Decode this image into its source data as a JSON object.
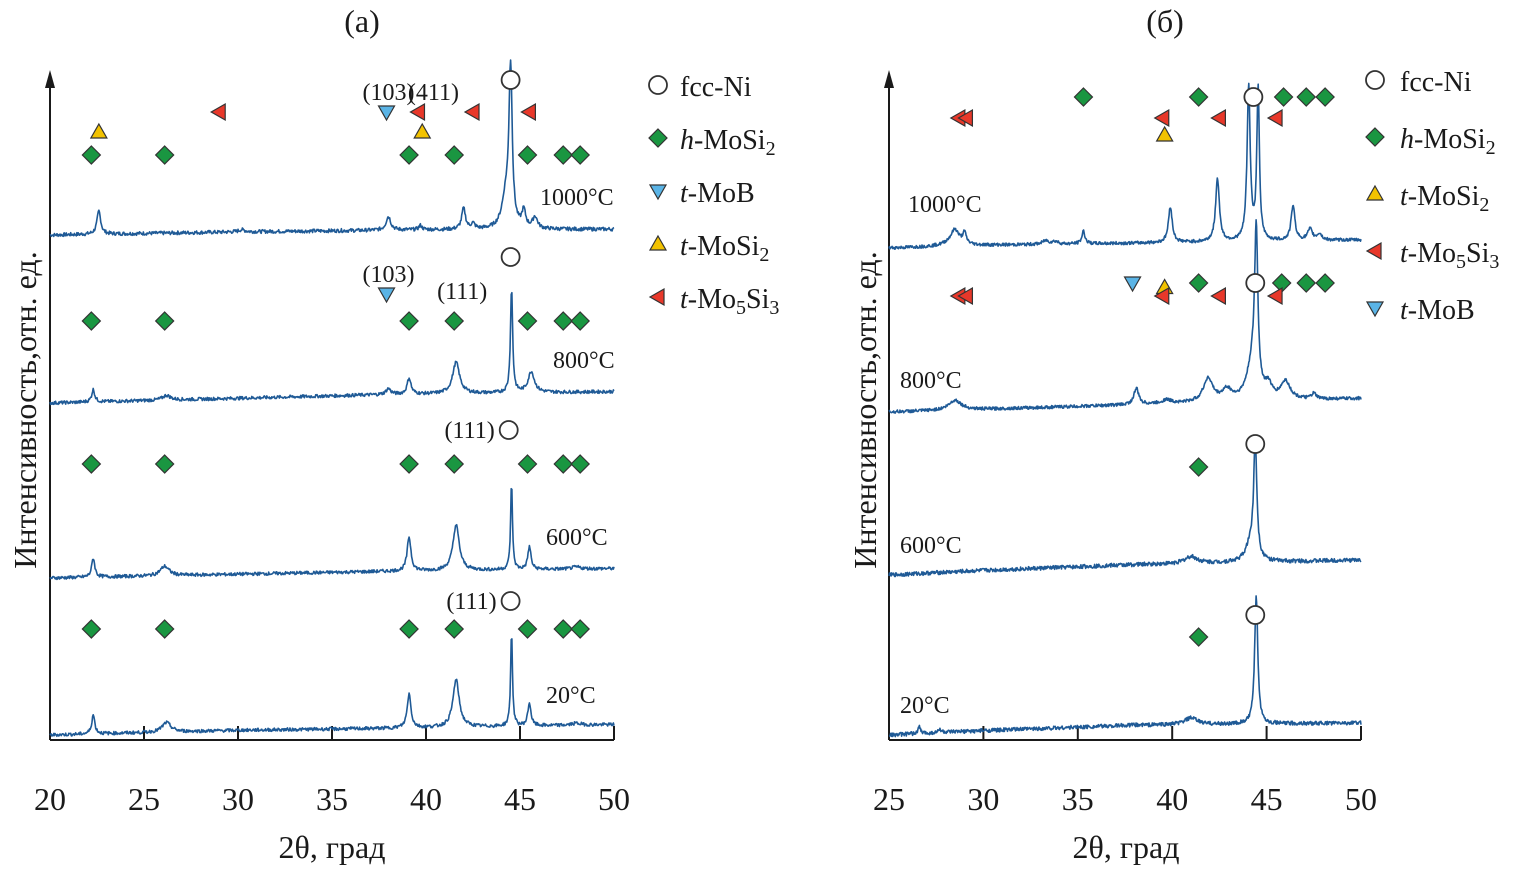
{
  "chart_data": [
    {
      "type": "line",
      "panel_label": "(a)",
      "xlabel": "2θ, град",
      "ylabel": "Интенсивность,отн. ед.",
      "xlim": [
        20,
        50
      ],
      "x_ticks": [
        20,
        25,
        30,
        35,
        40,
        45,
        50
      ],
      "y_ticks": [],
      "grid": false,
      "legend_position": "right",
      "legend": [
        {
          "phase": "fcc-Ni",
          "prefix": "",
          "name": "fcc-Ni",
          "marker": "circle"
        },
        {
          "phase": "h-MoSi2",
          "prefix": "h",
          "name": "-MoSi",
          "sub": "2",
          "marker": "diamond"
        },
        {
          "phase": "t-MoB",
          "prefix": "t",
          "name": "-MoB",
          "marker": "triangle-down"
        },
        {
          "phase": "t-MoSi2",
          "prefix": "t",
          "name": "-MoSi",
          "sub": "2",
          "marker": "triangle-up"
        },
        {
          "phase": "t-Mo5Si3",
          "prefix": "t",
          "name": "-Mo",
          "sub": "5",
          "name2": "Si",
          "sub2": "3",
          "marker": "triangle-left"
        }
      ],
      "series": [
        {
          "name": "1000°C",
          "baseline": [
            [
              20,
              0.0
            ],
            [
              30,
              0.3
            ],
            [
              40,
              0.5
            ],
            [
              50,
              0.55
            ]
          ],
          "peaks": [
            [
              22.6,
              2.2,
              0.12
            ],
            [
              30.2,
              0.2,
              0.2
            ],
            [
              38.0,
              1.3,
              0.15
            ],
            [
              39.7,
              0.4,
              0.1
            ],
            [
              42.0,
              2.0,
              0.12
            ],
            [
              42.5,
              0.5,
              0.12
            ],
            [
              44.5,
              15.0,
              0.1
            ],
            [
              44.25,
              3.0,
              0.25
            ],
            [
              45.2,
              1.6,
              0.12
            ],
            [
              45.8,
              1.1,
              0.15
            ]
          ],
          "markers": [
            {
              "phase": "fcc-Ni",
              "x": 44.5,
              "row": 0,
              "label": ""
            },
            {
              "phase": "t-MoB",
              "x": 37.9,
              "row": 1,
              "label": "(103)"
            },
            {
              "phase": "t-Mo5Si3",
              "x": 29.0,
              "row": 1
            },
            {
              "phase": "t-Mo5Si3",
              "x": 39.6,
              "row": 1
            },
            {
              "phase": "t-Mo5Si3",
              "x": 42.5,
              "row": 1,
              "label": "(411)"
            },
            {
              "phase": "t-Mo5Si3",
              "x": 45.5,
              "row": 1
            },
            {
              "phase": "t-MoSi2",
              "x": 22.6,
              "row": 2
            },
            {
              "phase": "t-MoSi2",
              "x": 39.8,
              "row": 2
            },
            {
              "phase": "h-MoSi2",
              "x": 22.2,
              "row": 3
            },
            {
              "phase": "h-MoSi2",
              "x": 26.1,
              "row": 3
            },
            {
              "phase": "h-MoSi2",
              "x": 39.1,
              "row": 3
            },
            {
              "phase": "h-MoSi2",
              "x": 41.5,
              "row": 3
            },
            {
              "phase": "h-MoSi2",
              "x": 45.4,
              "row": 3
            },
            {
              "phase": "h-MoSi2",
              "x": 47.3,
              "row": 3
            },
            {
              "phase": "h-MoSi2",
              "x": 48.2,
              "row": 3
            }
          ]
        },
        {
          "name": "800°C",
          "baseline": [
            [
              20,
              0.0
            ],
            [
              30,
              0.5
            ],
            [
              38,
              0.9
            ],
            [
              50,
              1.2
            ]
          ],
          "peaks": [
            [
              22.3,
              1.3,
              0.1
            ],
            [
              26.2,
              0.5,
              0.25
            ],
            [
              38.0,
              0.6,
              0.15
            ],
            [
              39.1,
              1.7,
              0.12
            ],
            [
              41.6,
              3.3,
              0.22
            ],
            [
              44.55,
              11.0,
              0.07
            ],
            [
              45.6,
              2.2,
              0.2
            ]
          ],
          "markers": [
            {
              "phase": "fcc-Ni",
              "x": 44.5,
              "row": 0
            },
            {
              "phase": "t-MoB",
              "x": 37.9,
              "row": 1,
              "label": "(103)"
            },
            {
              "phase": "h-MoSi2",
              "x": 22.2,
              "row": 3
            },
            {
              "phase": "h-MoSi2",
              "x": 26.1,
              "row": 3
            },
            {
              "phase": "h-MoSi2",
              "x": 39.1,
              "row": 3
            },
            {
              "phase": "h-MoSi2",
              "x": 41.5,
              "row": 3,
              "label": "(111)"
            },
            {
              "phase": "h-MoSi2",
              "x": 45.4,
              "row": 3
            },
            {
              "phase": "h-MoSi2",
              "x": 47.3,
              "row": 3
            },
            {
              "phase": "h-MoSi2",
              "x": 48.2,
              "row": 3
            }
          ]
        },
        {
          "name": "600°C",
          "baseline": [
            [
              20,
              0.0
            ],
            [
              30,
              0.4
            ],
            [
              38,
              0.7
            ],
            [
              50,
              1.0
            ]
          ],
          "peaks": [
            [
              22.3,
              2.0,
              0.1
            ],
            [
              26.1,
              1.0,
              0.28
            ],
            [
              39.1,
              3.6,
              0.12
            ],
            [
              41.6,
              4.8,
              0.2
            ],
            [
              44.55,
              9.0,
              0.06
            ],
            [
              45.5,
              2.4,
              0.1
            ],
            [
              48.0,
              0.2,
              0.3
            ]
          ],
          "markers": [
            {
              "phase": "fcc-Ni",
              "x": 44.4,
              "row": 0,
              "label": "(111)"
            },
            {
              "phase": "h-MoSi2",
              "x": 22.2,
              "row": 3
            },
            {
              "phase": "h-MoSi2",
              "x": 26.1,
              "row": 3
            },
            {
              "phase": "h-MoSi2",
              "x": 39.1,
              "row": 3
            },
            {
              "phase": "h-MoSi2",
              "x": 41.5,
              "row": 3
            },
            {
              "phase": "h-MoSi2",
              "x": 45.4,
              "row": 3
            },
            {
              "phase": "h-MoSi2",
              "x": 47.3,
              "row": 3
            },
            {
              "phase": "h-MoSi2",
              "x": 48.2,
              "row": 3
            }
          ]
        },
        {
          "name": "20°C",
          "baseline": [
            [
              20,
              0.0
            ],
            [
              30,
              0.5
            ],
            [
              38,
              0.7
            ],
            [
              50,
              1.1
            ]
          ],
          "peaks": [
            [
              22.3,
              2.0,
              0.1
            ],
            [
              26.2,
              1.0,
              0.28
            ],
            [
              39.1,
              3.6,
              0.12
            ],
            [
              41.6,
              5.0,
              0.2
            ],
            [
              44.55,
              9.8,
              0.06
            ],
            [
              45.5,
              2.4,
              0.1
            ],
            [
              48.0,
              0.2,
              0.3
            ]
          ],
          "markers": [
            {
              "phase": "fcc-Ni",
              "x": 44.5,
              "row": 0,
              "label": "(111)"
            },
            {
              "phase": "h-MoSi2",
              "x": 22.2,
              "row": 3
            },
            {
              "phase": "h-MoSi2",
              "x": 26.1,
              "row": 3
            },
            {
              "phase": "h-MoSi2",
              "x": 39.1,
              "row": 3
            },
            {
              "phase": "h-MoSi2",
              "x": 41.5,
              "row": 3
            },
            {
              "phase": "h-MoSi2",
              "x": 45.4,
              "row": 3
            },
            {
              "phase": "h-MoSi2",
              "x": 47.3,
              "row": 3
            },
            {
              "phase": "h-MoSi2",
              "x": 48.2,
              "row": 3
            }
          ]
        }
      ]
    },
    {
      "type": "line",
      "panel_label": "(б)",
      "xlabel": "2θ, град",
      "ylabel": "Интенсивность,отн. ед.",
      "xlim": [
        25,
        50
      ],
      "x_ticks": [
        25,
        30,
        35,
        40,
        45,
        50
      ],
      "y_ticks": [],
      "grid": false,
      "legend_position": "right",
      "legend": [
        {
          "phase": "fcc-Ni",
          "prefix": "",
          "name": "fcc-Ni",
          "marker": "circle"
        },
        {
          "phase": "h-MoSi2",
          "prefix": "h",
          "name": "-MoSi",
          "sub": "2",
          "marker": "diamond"
        },
        {
          "phase": "t-MoSi2",
          "prefix": "t",
          "name": "-MoSi",
          "sub": "2",
          "marker": "triangle-up"
        },
        {
          "phase": "t-Mo5Si3",
          "prefix": "t",
          "name": "-Mo",
          "sub": "5",
          "name2": "Si",
          "sub2": "3",
          "marker": "triangle-left"
        },
        {
          "phase": "t-MoB",
          "prefix": "t",
          "name": "-MoB",
          "marker": "triangle-down"
        }
      ],
      "series": [
        {
          "name": "1000°C",
          "baseline": [
            [
              25,
              0.0
            ],
            [
              30,
              0.3
            ],
            [
              40,
              0.6
            ],
            [
              50,
              0.9
            ]
          ],
          "peaks": [
            [
              28.5,
              1.5,
              0.25
            ],
            [
              29.0,
              1.2,
              0.12
            ],
            [
              28.3,
              0.4,
              0.5
            ],
            [
              33.3,
              0.4,
              0.2
            ],
            [
              33.8,
              0.3,
              0.2
            ],
            [
              35.3,
              1.4,
              0.1
            ],
            [
              39.9,
              4.0,
              0.12
            ],
            [
              42.4,
              7.0,
              0.12
            ],
            [
              44.05,
              17.0,
              0.1
            ],
            [
              44.55,
              17.0,
              0.08
            ],
            [
              46.4,
              3.9,
              0.12
            ],
            [
              47.3,
              1.2,
              0.15
            ],
            [
              47.8,
              0.7,
              0.15
            ]
          ],
          "markers": [
            {
              "phase": "fcc-Ni",
              "x": 44.3,
              "row": 0
            },
            {
              "phase": "h-MoSi2",
              "x": 35.3,
              "row": 0
            },
            {
              "phase": "h-MoSi2",
              "x": 41.4,
              "row": 0
            },
            {
              "phase": "h-MoSi2",
              "x": 45.9,
              "row": 0
            },
            {
              "phase": "h-MoSi2",
              "x": 47.1,
              "row": 0
            },
            {
              "phase": "h-MoSi2",
              "x": 48.1,
              "row": 0
            },
            {
              "phase": "t-Mo5Si3",
              "x": 28.7,
              "row": 1
            },
            {
              "phase": "t-Mo5Si3",
              "x": 29.1,
              "row": 1
            },
            {
              "phase": "t-Mo5Si3",
              "x": 39.5,
              "row": 1
            },
            {
              "phase": "t-Mo5Si3",
              "x": 42.5,
              "row": 1
            },
            {
              "phase": "t-Mo5Si3",
              "x": 45.5,
              "row": 1
            },
            {
              "phase": "t-MoSi2",
              "x": 39.6,
              "row": 2
            }
          ]
        },
        {
          "name": "800°C",
          "baseline": [
            [
              25,
              0.0
            ],
            [
              30,
              0.3
            ],
            [
              38,
              0.8
            ],
            [
              50,
              1.5
            ]
          ],
          "peaks": [
            [
              28.5,
              1.1,
              0.4
            ],
            [
              38.1,
              1.8,
              0.15
            ],
            [
              39.7,
              0.4,
              0.3
            ],
            [
              41.9,
              2.6,
              0.3
            ],
            [
              42.9,
              1.2,
              0.3
            ],
            [
              44.45,
              17.0,
              0.1
            ],
            [
              44.25,
              4.0,
              0.35
            ],
            [
              45.1,
              1.4,
              0.2
            ],
            [
              46.0,
              2.0,
              0.3
            ],
            [
              47.5,
              0.6,
              0.15
            ]
          ],
          "markers": [
            {
              "phase": "fcc-Ni",
              "x": 44.4,
              "row": 0
            },
            {
              "phase": "t-MoB",
              "x": 37.9,
              "row": 0
            },
            {
              "phase": "h-MoSi2",
              "x": 41.4,
              "row": 0
            },
            {
              "phase": "h-MoSi2",
              "x": 45.8,
              "row": 0
            },
            {
              "phase": "h-MoSi2",
              "x": 47.1,
              "row": 0
            },
            {
              "phase": "h-MoSi2",
              "x": 48.1,
              "row": 0
            },
            {
              "phase": "t-MoSi2",
              "x": 39.6,
              "row": 0.5
            },
            {
              "phase": "t-Mo5Si3",
              "x": 28.7,
              "row": 1.5
            },
            {
              "phase": "t-Mo5Si3",
              "x": 29.1,
              "row": 1.5
            },
            {
              "phase": "t-Mo5Si3",
              "x": 39.5,
              "row": 1.5
            },
            {
              "phase": "t-Mo5Si3",
              "x": 42.5,
              "row": 1.5
            },
            {
              "phase": "t-Mo5Si3",
              "x": 45.5,
              "row": 1.5
            }
          ]
        },
        {
          "name": "600°C",
          "baseline": [
            [
              25,
              0.0
            ],
            [
              30,
              0.4
            ],
            [
              38,
              0.9
            ],
            [
              50,
              1.3
            ]
          ],
          "peaks": [
            [
              41.0,
              0.6,
              0.4
            ],
            [
              44.4,
              10.0,
              0.1
            ],
            [
              44.15,
              1.5,
              0.3
            ]
          ],
          "markers": [
            {
              "phase": "fcc-Ni",
              "x": 44.4,
              "row": 0
            },
            {
              "phase": "h-MoSi2",
              "x": 41.4,
              "row": 1
            }
          ]
        },
        {
          "name": "20°C",
          "baseline": [
            [
              25,
              0.0
            ],
            [
              30,
              0.4
            ],
            [
              38,
              0.9
            ],
            [
              50,
              1.1
            ]
          ],
          "peaks": [
            [
              26.6,
              0.6,
              0.08
            ],
            [
              27.7,
              0.3,
              0.1
            ],
            [
              41.0,
              0.6,
              0.4
            ],
            [
              44.45,
              11.5,
              0.1
            ]
          ],
          "markers": [
            {
              "phase": "fcc-Ni",
              "x": 44.4,
              "row": 0
            },
            {
              "phase": "h-MoSi2",
              "x": 41.4,
              "row": 1
            }
          ]
        }
      ]
    }
  ],
  "colors": {
    "trace": "#1f5a96",
    "fcc-Ni": "#ffffff",
    "h-MoSi2": "#1a9641",
    "t-MoB": "#5ab4e6",
    "t-MoSi2": "#f2c200",
    "t-Mo5Si3": "#e8382a",
    "marker_stroke": "#333333"
  }
}
